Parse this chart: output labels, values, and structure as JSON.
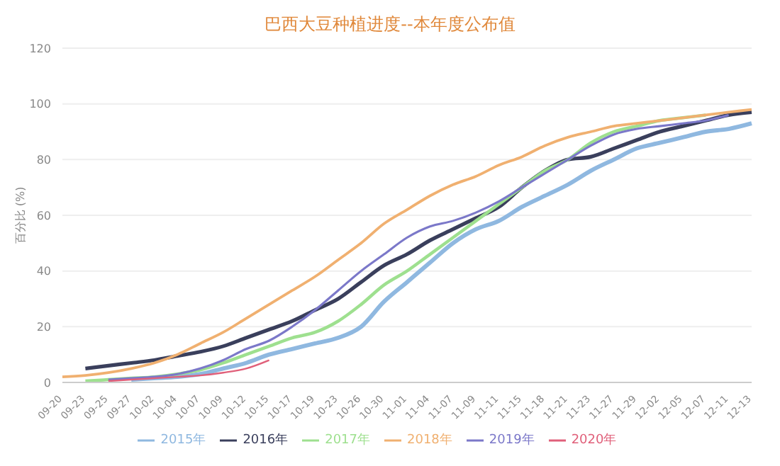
{
  "chart_data": {
    "type": "line",
    "title": "巴西大豆种植进度--本年度公布值",
    "ylabel": "百分比 (%)",
    "categories": [
      "09-20",
      "09-23",
      "09-25",
      "09-27",
      "10-02",
      "10-04",
      "10-07",
      "10-09",
      "10-12",
      "10-15",
      "10-17",
      "10-19",
      "10-23",
      "10-26",
      "10-30",
      "11-01",
      "11-04",
      "11-07",
      "11-09",
      "11-11",
      "11-15",
      "11-18",
      "11-21",
      "11-23",
      "11-27",
      "11-29",
      "12-02",
      "12-05",
      "12-07",
      "12-11",
      "12-13"
    ],
    "series": [
      {
        "name": "2015年",
        "color": "#8fb8e0",
        "values": [
          null,
          null,
          null,
          1,
          1.5,
          2,
          3,
          5,
          7,
          10,
          12,
          14,
          16,
          20,
          29,
          36,
          43,
          50,
          55,
          58,
          63,
          67,
          71,
          76,
          80,
          84,
          86,
          88,
          90,
          91,
          93
        ]
      },
      {
        "name": "2016年",
        "color": "#3a3f5c",
        "values": [
          null,
          5,
          6,
          7,
          8,
          9.5,
          11,
          13,
          16,
          19,
          22,
          26,
          30,
          36,
          42,
          46,
          51,
          55,
          59,
          63,
          70,
          76,
          80,
          81,
          84,
          87,
          90,
          92,
          94,
          96,
          97
        ]
      },
      {
        "name": "2017年",
        "color": "#9ee08f",
        "values": [
          null,
          0.5,
          1,
          1.5,
          2,
          3,
          4.5,
          7,
          10,
          13,
          16,
          18,
          22,
          28,
          35,
          40,
          46,
          52,
          58,
          64,
          70,
          76,
          80,
          86,
          90,
          92,
          94,
          95,
          96,
          null,
          null
        ]
      },
      {
        "name": "2018年",
        "color": "#f0b070",
        "values": [
          2,
          2.5,
          3.5,
          5,
          7,
          10,
          14,
          18,
          23,
          28,
          33,
          38,
          44,
          50,
          57,
          62,
          67,
          71,
          74,
          78,
          81,
          85,
          88,
          90,
          92,
          93,
          94,
          95,
          96,
          97,
          98
        ]
      },
      {
        "name": "2019年",
        "color": "#7b78c9",
        "values": [
          null,
          null,
          1,
          1.5,
          2,
          3,
          5,
          8,
          12,
          15,
          20,
          26,
          33,
          40,
          46,
          52,
          56,
          58,
          61,
          65,
          70,
          75,
          80,
          85,
          89,
          91,
          92,
          93,
          94,
          96,
          null
        ]
      },
      {
        "name": "2020年",
        "color": "#e0607a",
        "values": [
          null,
          null,
          0.5,
          1,
          1.5,
          2,
          2.5,
          3.5,
          5,
          8,
          null,
          null,
          null,
          null,
          null,
          null,
          null,
          null,
          null,
          null,
          null,
          null,
          null,
          null,
          null,
          null,
          null,
          null,
          null,
          null,
          null
        ]
      }
    ],
    "ylim": [
      0,
      120
    ],
    "yticks": [
      0,
      20,
      40,
      60,
      80,
      100,
      120
    ],
    "grid": "y",
    "legend": "bottom",
    "marker": "none"
  }
}
